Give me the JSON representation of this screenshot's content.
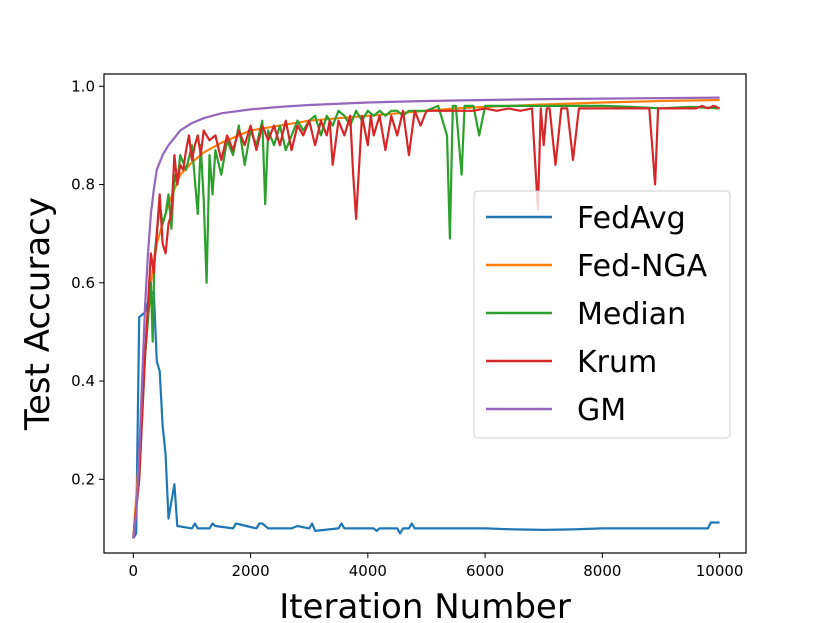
{
  "chart_data": {
    "type": "line",
    "title": "",
    "xlabel": "Iteration Number",
    "ylabel": "Test Accuracy",
    "xlim": [
      -500,
      10450
    ],
    "ylim": [
      0.05,
      1.025
    ],
    "xticks": [
      0,
      2000,
      4000,
      6000,
      8000,
      10000
    ],
    "xtick_labels": [
      "0",
      "2000",
      "4000",
      "6000",
      "8000",
      "10000"
    ],
    "yticks": [
      0.2,
      0.4,
      0.6,
      0.8,
      1.0
    ],
    "ytick_labels": [
      "0.2",
      "0.4",
      "0.6",
      "0.8",
      "1.0"
    ],
    "legend_position": "center-right",
    "series": [
      {
        "name": "FedAvg",
        "color": "#1f77b4",
        "x": [
          0,
          50,
          100,
          200,
          300,
          350,
          400,
          450,
          500,
          550,
          600,
          700,
          750,
          1000,
          1050,
          1100,
          1300,
          1350,
          1400,
          1700,
          1750,
          2100,
          2150,
          2200,
          2300,
          2700,
          2800,
          3000,
          3050,
          3100,
          3500,
          3550,
          3600,
          4100,
          4150,
          4200,
          4500,
          4550,
          4600,
          4700,
          4750,
          4800,
          5000,
          5500,
          6000,
          6500,
          7000,
          7500,
          8000,
          8500,
          9000,
          9500,
          9800,
          9850,
          10000
        ],
        "y": [
          0.08,
          0.09,
          0.53,
          0.54,
          0.58,
          0.58,
          0.44,
          0.42,
          0.31,
          0.25,
          0.12,
          0.19,
          0.105,
          0.1,
          0.11,
          0.1,
          0.1,
          0.11,
          0.105,
          0.1,
          0.11,
          0.1,
          0.11,
          0.11,
          0.1,
          0.1,
          0.105,
          0.1,
          0.11,
          0.095,
          0.1,
          0.11,
          0.1,
          0.1,
          0.095,
          0.1,
          0.1,
          0.09,
          0.1,
          0.1,
          0.11,
          0.1,
          0.1,
          0.1,
          0.1,
          0.098,
          0.097,
          0.098,
          0.1,
          0.1,
          0.1,
          0.1,
          0.1,
          0.112,
          0.112
        ]
      },
      {
        "name": "Fed-NGA",
        "color": "#ff7f0e",
        "x": [
          0,
          100,
          200,
          300,
          400,
          500,
          600,
          700,
          800,
          1000,
          1200,
          1500,
          1800,
          2000,
          2500,
          3000,
          3500,
          4000,
          4500,
          5000,
          5500,
          6000,
          7000,
          8000,
          9000,
          10000
        ],
        "y": [
          0.08,
          0.25,
          0.45,
          0.6,
          0.68,
          0.72,
          0.76,
          0.79,
          0.82,
          0.845,
          0.865,
          0.885,
          0.9,
          0.91,
          0.92,
          0.93,
          0.935,
          0.94,
          0.945,
          0.95,
          0.955,
          0.958,
          0.963,
          0.967,
          0.97,
          0.972
        ]
      },
      {
        "name": "Median",
        "color": "#2ca02c",
        "x": [
          0,
          100,
          200,
          300,
          330,
          360,
          400,
          450,
          500,
          550,
          600,
          650,
          700,
          750,
          800,
          900,
          1000,
          1100,
          1150,
          1200,
          1250,
          1300,
          1350,
          1400,
          1500,
          1600,
          1700,
          1800,
          1900,
          2000,
          2100,
          2200,
          2250,
          2300,
          2400,
          2500,
          2600,
          2700,
          2800,
          2900,
          3000,
          3100,
          3200,
          3300,
          3400,
          3500,
          3600,
          3700,
          3800,
          3900,
          4000,
          4100,
          4200,
          4300,
          4400,
          4500,
          4600,
          4700,
          4800,
          4900,
          5000,
          5200,
          5350,
          5400,
          5450,
          5500,
          5600,
          5650,
          5700,
          5800,
          5900,
          6000,
          6200,
          6400,
          6500,
          6600,
          6800,
          7000,
          7500,
          8000,
          8500,
          9000,
          9500,
          10000
        ],
        "y": [
          0.08,
          0.2,
          0.45,
          0.6,
          0.48,
          0.65,
          0.7,
          0.76,
          0.72,
          0.74,
          0.78,
          0.71,
          0.82,
          0.8,
          0.86,
          0.83,
          0.88,
          0.74,
          0.88,
          0.77,
          0.6,
          0.86,
          0.78,
          0.87,
          0.82,
          0.89,
          0.86,
          0.92,
          0.84,
          0.91,
          0.88,
          0.93,
          0.76,
          0.91,
          0.88,
          0.92,
          0.87,
          0.9,
          0.93,
          0.91,
          0.93,
          0.94,
          0.9,
          0.94,
          0.92,
          0.95,
          0.94,
          0.92,
          0.95,
          0.93,
          0.95,
          0.94,
          0.95,
          0.94,
          0.95,
          0.95,
          0.94,
          0.95,
          0.95,
          0.95,
          0.95,
          0.96,
          0.9,
          0.69,
          0.96,
          0.96,
          0.82,
          0.96,
          0.96,
          0.96,
          0.9,
          0.96,
          0.96,
          0.96,
          0.96,
          0.96,
          0.96,
          0.96,
          0.96,
          0.96,
          0.958,
          0.955,
          0.958,
          0.955
        ]
      },
      {
        "name": "Krum",
        "color": "#d62728",
        "x": [
          0,
          100,
          200,
          300,
          350,
          400,
          450,
          500,
          550,
          600,
          650,
          700,
          750,
          800,
          850,
          900,
          950,
          1000,
          1050,
          1100,
          1150,
          1200,
          1300,
          1400,
          1500,
          1600,
          1700,
          1800,
          1900,
          2000,
          2100,
          2200,
          2300,
          2400,
          2500,
          2600,
          2700,
          2800,
          2900,
          3000,
          3100,
          3200,
          3300,
          3350,
          3400,
          3500,
          3600,
          3700,
          3750,
          3800,
          3900,
          4000,
          4050,
          4100,
          4200,
          4300,
          4400,
          4500,
          4600,
          4700,
          4800,
          4900,
          5000,
          5200,
          5400,
          5600,
          5800,
          6000,
          6200,
          6400,
          6600,
          6800,
          6900,
          6950,
          7000,
          7050,
          7100,
          7200,
          7300,
          7400,
          7500,
          7600,
          7800,
          8000,
          8300,
          8500,
          8800,
          8900,
          8950,
          9000,
          9100,
          9300,
          9500,
          9600,
          9700,
          9800,
          9900,
          10000
        ],
        "y": [
          0.08,
          0.2,
          0.45,
          0.66,
          0.62,
          0.7,
          0.78,
          0.68,
          0.66,
          0.72,
          0.74,
          0.86,
          0.8,
          0.84,
          0.83,
          0.87,
          0.9,
          0.85,
          0.88,
          0.9,
          0.86,
          0.91,
          0.89,
          0.9,
          0.85,
          0.9,
          0.87,
          0.91,
          0.88,
          0.92,
          0.87,
          0.92,
          0.89,
          0.92,
          0.88,
          0.93,
          0.87,
          0.92,
          0.9,
          0.93,
          0.88,
          0.93,
          0.9,
          0.93,
          0.84,
          0.93,
          0.9,
          0.94,
          0.82,
          0.73,
          0.94,
          0.88,
          0.94,
          0.9,
          0.94,
          0.87,
          0.94,
          0.9,
          0.95,
          0.86,
          0.95,
          0.92,
          0.95,
          0.95,
          0.95,
          0.95,
          0.95,
          0.955,
          0.95,
          0.955,
          0.95,
          0.955,
          0.75,
          0.955,
          0.88,
          0.955,
          0.955,
          0.84,
          0.955,
          0.955,
          0.85,
          0.955,
          0.955,
          0.955,
          0.955,
          0.955,
          0.955,
          0.8,
          0.955,
          0.955,
          0.955,
          0.955,
          0.955,
          0.955,
          0.96,
          0.955,
          0.96,
          0.955
        ]
      },
      {
        "name": "GM",
        "color": "#9467bd",
        "x": [
          0,
          50,
          100,
          150,
          200,
          250,
          300,
          350,
          400,
          500,
          600,
          700,
          800,
          1000,
          1200,
          1500,
          2000,
          2500,
          3000,
          4000,
          5000,
          6000,
          7000,
          8000,
          9000,
          10000
        ],
        "y": [
          0.08,
          0.13,
          0.25,
          0.4,
          0.55,
          0.66,
          0.74,
          0.79,
          0.83,
          0.86,
          0.88,
          0.895,
          0.91,
          0.925,
          0.935,
          0.945,
          0.953,
          0.958,
          0.962,
          0.967,
          0.97,
          0.972,
          0.974,
          0.975,
          0.976,
          0.977
        ]
      }
    ]
  }
}
